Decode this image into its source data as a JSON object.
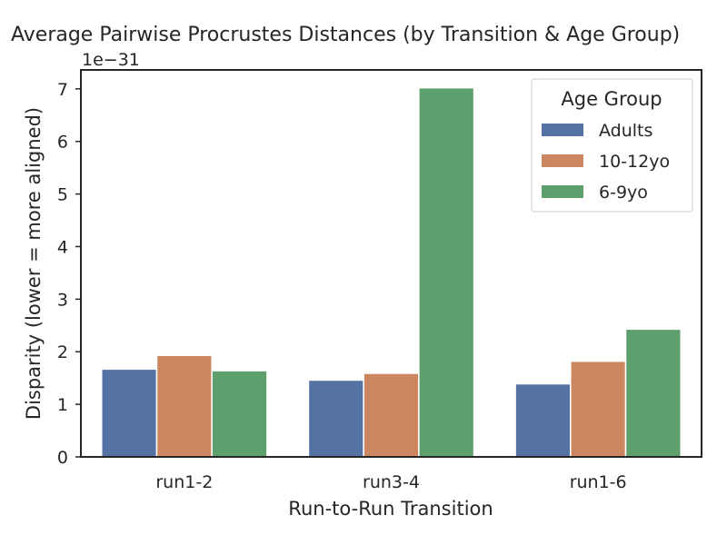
{
  "chart_data": {
    "type": "bar",
    "title": "Average Pairwise Procrustes Distances (by Transition & Age Group)",
    "xlabel": "Run-to-Run Transition",
    "ylabel": "Disparity (lower = more aligned)",
    "y_offset_label": "1e−31",
    "categories": [
      "run1-2",
      "run3-4",
      "run1-6"
    ],
    "series": [
      {
        "name": "Adults",
        "color": "#5572a5",
        "values": [
          1.67,
          1.46,
          1.39
        ]
      },
      {
        "name": "10-12yo",
        "color": "#cc8660",
        "values": [
          1.93,
          1.59,
          1.82
        ]
      },
      {
        "name": "6-9yo",
        "color": "#5e9f6e",
        "values": [
          1.64,
          7.02,
          2.43
        ]
      }
    ],
    "ylim": [
      0,
      7.36
    ],
    "yticks": [
      "0",
      "1",
      "2",
      "3",
      "4",
      "5",
      "6",
      "7"
    ],
    "legend": {
      "title": "Age Group",
      "placement": "top-right"
    },
    "grid": false
  }
}
